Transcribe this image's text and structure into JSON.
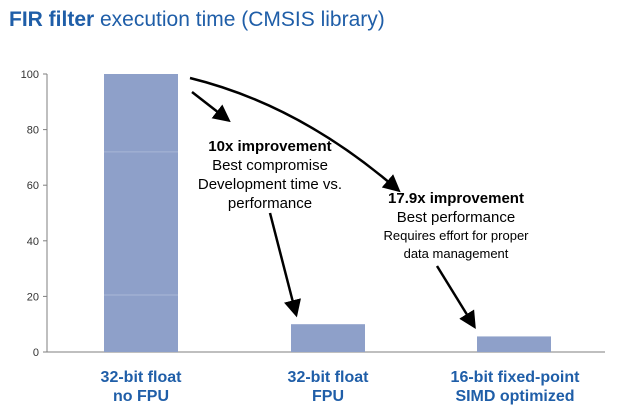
{
  "title": {
    "bold": "FIR filter",
    "rest": " execution time (CMSIS library)"
  },
  "colors": {
    "title": "#1f5ea8",
    "bar": "#8ea0c9",
    "grid": "#d9d9d9"
  },
  "chart_data": {
    "type": "bar",
    "categories": [
      [
        "32-bit float",
        "no FPU"
      ],
      [
        "32-bit float",
        "FPU"
      ],
      [
        "16-bit fixed-point",
        "SIMD optimized"
      ]
    ],
    "values": [
      100,
      10,
      5.6
    ],
    "ylim": [
      0,
      100
    ],
    "yticks": [
      0,
      20,
      40,
      60,
      80,
      100
    ],
    "grid": false,
    "annotations": [
      {
        "lines": [
          "10x improvement",
          "Best compromise",
          "Development time vs.",
          "performance"
        ],
        "points_to": "32-bit float FPU"
      },
      {
        "lines": [
          "17.9x improvement",
          "Best performance",
          "Requires effort for proper",
          "data management"
        ],
        "points_to": "16-bit fixed-point SIMD optimized"
      }
    ]
  }
}
